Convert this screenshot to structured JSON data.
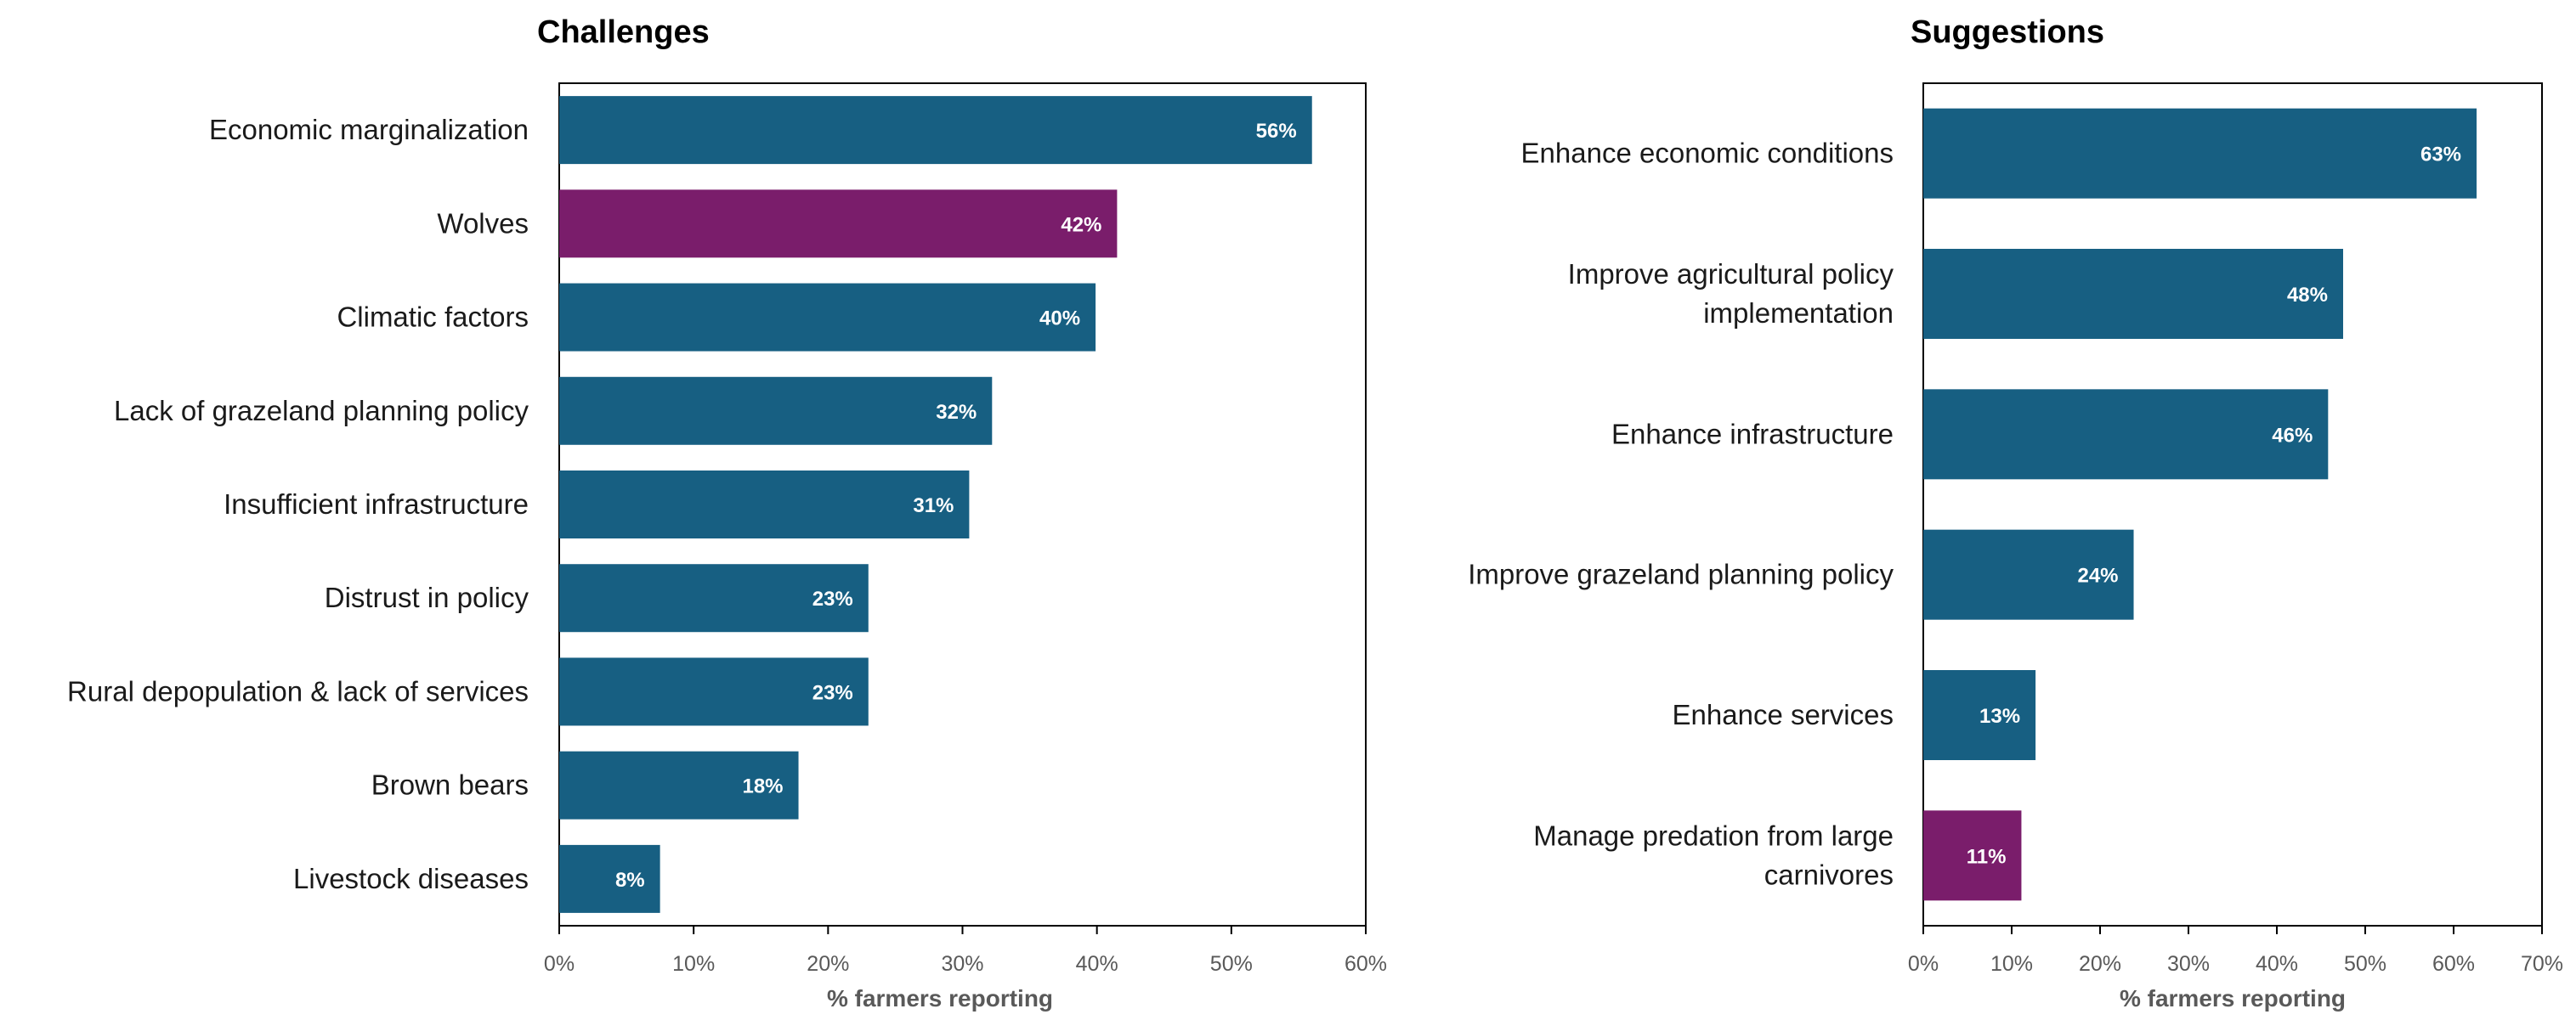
{
  "chart_data": [
    {
      "type": "bar",
      "orientation": "horizontal",
      "title": "Challenges",
      "categories": [
        "Economic marginalization",
        "Wolves",
        "Climatic factors",
        "Lack of grazeland planning policy",
        "Insufficient infrastructure",
        "Distrust in policy",
        "Rural depopulation & lack of services",
        "Brown bears",
        "Livestock diseases"
      ],
      "values": [
        56,
        42,
        40,
        32,
        31,
        23,
        23,
        18,
        8
      ],
      "precise_values": [
        56,
        41.5,
        39.9,
        32.2,
        30.5,
        23,
        23,
        17.8,
        7.5
      ],
      "value_labels": [
        "56%",
        "42%",
        "40%",
        "32%",
        "31%",
        "23%",
        "23%",
        "18%",
        "8%"
      ],
      "bar_colors": [
        "#175f82",
        "#7a1d6b",
        "#175f82",
        "#175f82",
        "#175f82",
        "#175f82",
        "#175f82",
        "#175f82",
        "#175f82"
      ],
      "xlabel": "% farmers reporting",
      "ylabel": "",
      "xlim": [
        0,
        60
      ],
      "xticks": [
        0,
        10,
        20,
        30,
        40,
        50,
        60
      ],
      "xtick_labels": [
        "0%",
        "10%",
        "20%",
        "30%",
        "40%",
        "50%",
        "60%"
      ],
      "grid": false
    },
    {
      "type": "bar",
      "orientation": "horizontal",
      "title": "Suggestions",
      "categories": [
        "Enhance economic conditions",
        "Improve agricultural policy implementation",
        "Enhance infrastructure",
        "Improve grazeland planning policy",
        "Enhance services",
        "Manage predation from large carnivores"
      ],
      "category_lines": [
        [
          "Enhance economic conditions"
        ],
        [
          "Improve agricultural policy",
          "implementation"
        ],
        [
          "Enhance infrastructure"
        ],
        [
          "Improve grazeland planning policy"
        ],
        [
          "Enhance services"
        ],
        [
          "Manage predation from large",
          "carnivores"
        ]
      ],
      "values": [
        63,
        48,
        46,
        24,
        13,
        11
      ],
      "precise_values": [
        62.6,
        47.5,
        45.8,
        23.8,
        12.7,
        11.1
      ],
      "value_labels": [
        "63%",
        "48%",
        "46%",
        "24%",
        "13%",
        "11%"
      ],
      "bar_colors": [
        "#175f82",
        "#175f82",
        "#175f82",
        "#175f82",
        "#175f82",
        "#7a1d6b"
      ],
      "xlabel": "% farmers reporting",
      "ylabel": "",
      "xlim": [
        0,
        70
      ],
      "xticks": [
        0,
        10,
        20,
        30,
        40,
        50,
        60,
        70
      ],
      "xtick_labels": [
        "0%",
        "10%",
        "20%",
        "30%",
        "40%",
        "50%",
        "60%",
        "70%"
      ],
      "grid": false
    }
  ]
}
